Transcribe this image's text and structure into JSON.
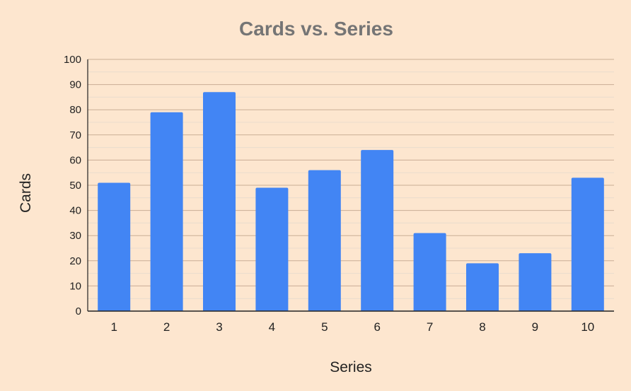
{
  "chart_data": {
    "type": "bar",
    "title": "Cards vs. Series",
    "xlabel": "Series",
    "ylabel": "Cards",
    "categories": [
      "1",
      "2",
      "3",
      "4",
      "5",
      "6",
      "7",
      "8",
      "9",
      "10"
    ],
    "values": [
      51,
      79,
      87,
      49,
      56,
      64,
      31,
      19,
      23,
      53
    ],
    "ylim": [
      0,
      100
    ],
    "yticks": [
      0,
      10,
      20,
      30,
      40,
      50,
      60,
      70,
      80,
      90,
      100
    ],
    "grid": true,
    "legend": "none"
  },
  "colors": {
    "background": "#fde6cf",
    "bar": "#4285f4",
    "major_grid": "#c9ad96",
    "minor_grid": "#eadccd",
    "axis": "#222222",
    "title": "#757575"
  }
}
